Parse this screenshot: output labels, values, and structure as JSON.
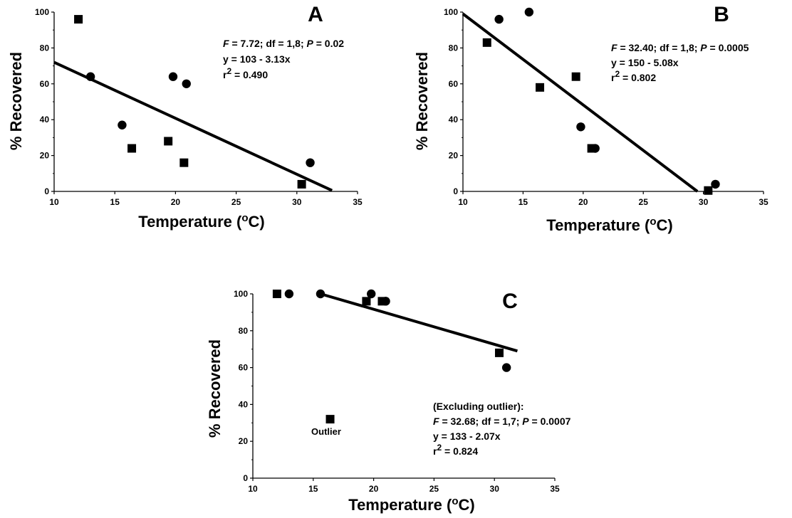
{
  "chart_data": [
    {
      "panel": "A",
      "type": "scatter",
      "xlabel": "Temperature (",
      "xlabel_sup": "o",
      "xlabel_end": "C)",
      "ylabel": "% Recovered",
      "xlim": [
        10,
        35
      ],
      "ylim": [
        0,
        100
      ],
      "xticks": [
        10,
        15,
        20,
        25,
        30,
        35
      ],
      "yticks": [
        0,
        20,
        40,
        60,
        80,
        100
      ],
      "grid": false,
      "series": [
        {
          "marker": "square",
          "points": [
            [
              12,
              96
            ],
            [
              16.4,
              24
            ],
            [
              19.4,
              28
            ],
            [
              20.7,
              16
            ],
            [
              30.4,
              4
            ]
          ]
        },
        {
          "marker": "circle",
          "points": [
            [
              13,
              64
            ],
            [
              15.6,
              37
            ],
            [
              19.8,
              64
            ],
            [
              20.9,
              60
            ],
            [
              31.1,
              16
            ]
          ]
        }
      ],
      "fit_line": {
        "x": [
          10,
          32.9
        ],
        "y": [
          72,
          0.5
        ]
      },
      "stats": [
        "F = 7.72; df = 1,8; P = 0.02",
        "y = 103 - 3.13x",
        "r2 = 0.490"
      ]
    },
    {
      "panel": "B",
      "type": "scatter",
      "xlabel": "Temperature (",
      "xlabel_sup": "o",
      "xlabel_end": "C)",
      "ylabel": "% Recovered",
      "xlim": [
        10,
        35
      ],
      "ylim": [
        0,
        100
      ],
      "xticks": [
        10,
        15,
        20,
        25,
        30,
        35
      ],
      "yticks": [
        0,
        20,
        40,
        60,
        80,
        100
      ],
      "grid": false,
      "series": [
        {
          "marker": "square",
          "points": [
            [
              12,
              83
            ],
            [
              16.4,
              58
            ],
            [
              19.4,
              64
            ],
            [
              20.7,
              24
            ],
            [
              30.4,
              0.5
            ]
          ]
        },
        {
          "marker": "circle",
          "points": [
            [
              13,
              96
            ],
            [
              15.5,
              100
            ],
            [
              19.8,
              36
            ],
            [
              21,
              24
            ],
            [
              31,
              4
            ]
          ]
        }
      ],
      "fit_line": {
        "x": [
          10,
          29.5
        ],
        "y": [
          99,
          0
        ]
      },
      "stats": [
        "F = 32.40; df = 1,8; P = 0.0005",
        "y = 150 - 5.08x",
        "r2 = 0.802"
      ]
    },
    {
      "panel": "C",
      "type": "scatter",
      "xlabel": "Temperature (",
      "xlabel_sup": "o",
      "xlabel_end": "C)",
      "ylabel": "% Recovered",
      "xlim": [
        10,
        35
      ],
      "ylim": [
        0,
        100
      ],
      "xticks": [
        10,
        15,
        20,
        25,
        30,
        35
      ],
      "yticks": [
        0,
        20,
        40,
        60,
        80,
        100
      ],
      "grid": false,
      "series": [
        {
          "marker": "square",
          "points": [
            [
              12,
              100
            ],
            [
              16.4,
              32
            ],
            [
              19.4,
              96
            ],
            [
              20.7,
              96
            ],
            [
              30.4,
              68
            ]
          ]
        },
        {
          "marker": "circle",
          "points": [
            [
              13,
              100
            ],
            [
              15.6,
              100
            ],
            [
              19.8,
              100
            ],
            [
              21,
              96
            ],
            [
              31,
              60
            ]
          ]
        }
      ],
      "fit_line": {
        "x": [
          15.6,
          31.9
        ],
        "y": [
          100,
          69
        ]
      },
      "annotation": "Outlier",
      "stats_header": "(Excluding outlier):",
      "stats": [
        "F = 32.68; df = 1,7; P = 0.0007",
        "y = 133 - 2.07x",
        "r2 = 0.824"
      ]
    }
  ]
}
